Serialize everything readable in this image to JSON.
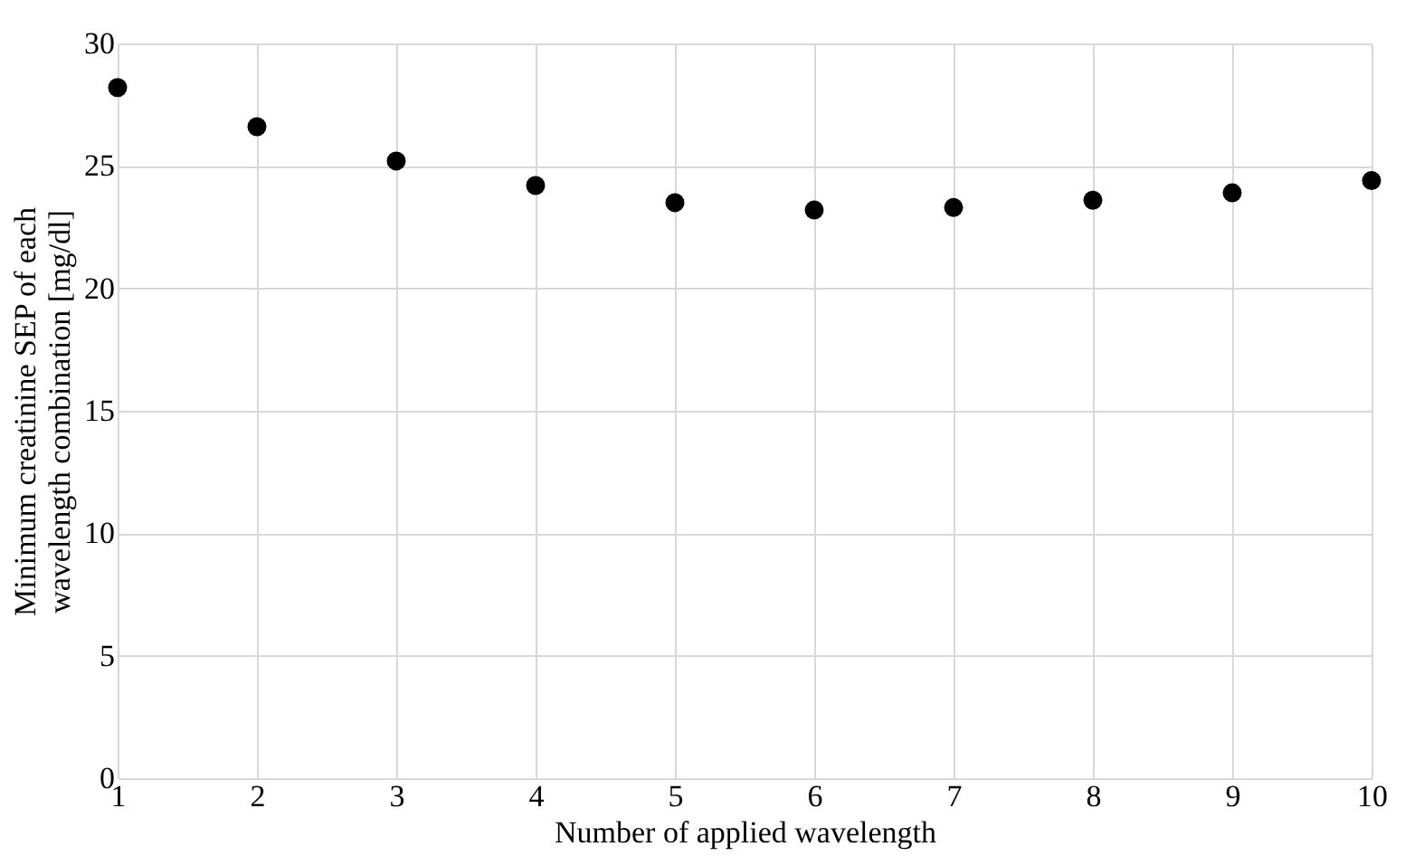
{
  "chart_data": {
    "type": "scatter",
    "xlabel": "Number of applied wavelength",
    "ylabel": "Minimum creatinine SEP of each wavelength combination [mg/dl]",
    "x": [
      1,
      2,
      3,
      4,
      5,
      6,
      7,
      8,
      9,
      10
    ],
    "series": [
      {
        "color": "#000000",
        "values": [
          28.2,
          26.6,
          25.2,
          24.2,
          23.5,
          23.2,
          23.3,
          23.6,
          23.9,
          24.4
        ]
      }
    ],
    "xlim": [
      1,
      10
    ],
    "xticks": [
      1,
      2,
      3,
      4,
      5,
      6,
      7,
      8,
      9,
      10
    ],
    "ylim": [
      0,
      30
    ],
    "yticks": [
      0,
      5,
      10,
      15,
      20,
      25,
      30
    ],
    "grid": true,
    "marker": "circle"
  }
}
